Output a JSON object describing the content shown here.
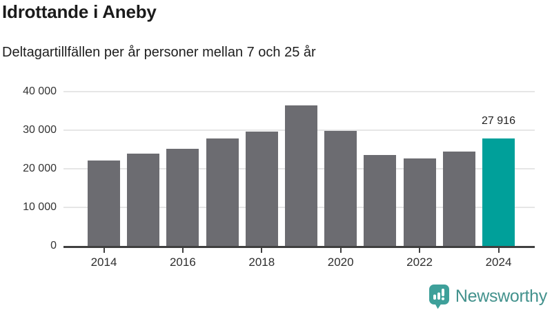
{
  "header": {
    "title": "Idrottande i Aneby",
    "subtitle": "Deltagartillfällen per år personer mellan 7 och 25 år"
  },
  "chart_data": {
    "type": "bar",
    "x": [
      2014,
      2015,
      2016,
      2017,
      2018,
      2019,
      2020,
      2021,
      2022,
      2023,
      2024
    ],
    "values": [
      22100,
      23900,
      25200,
      27800,
      29700,
      36500,
      29900,
      23500,
      22700,
      24400,
      27916
    ],
    "highlight_index": 10,
    "highlight_label": "27 916",
    "title": "Idrottande i Aneby",
    "subtitle": "Deltagartillfällen per år personer mellan 7 och 25 år",
    "xlabel": "",
    "ylabel": "",
    "ylim": [
      0,
      40000
    ],
    "grid": "horizontal",
    "legend": "none",
    "y_ticks": [
      {
        "value": 40000,
        "label": "40 000"
      },
      {
        "value": 30000,
        "label": "30 000"
      },
      {
        "value": 20000,
        "label": "20 000"
      },
      {
        "value": 10000,
        "label": "10 000"
      },
      {
        "value": 0,
        "label": "0"
      }
    ],
    "x_ticks": [
      {
        "year": 2014,
        "label": "2014"
      },
      {
        "year": 2016,
        "label": "2016"
      },
      {
        "year": 2018,
        "label": "2018"
      },
      {
        "year": 2020,
        "label": "2020"
      },
      {
        "year": 2022,
        "label": "2022"
      },
      {
        "year": 2024,
        "label": "2024"
      }
    ],
    "colors": {
      "bar": "#6c6c71",
      "highlight": "#00a09a",
      "grid": "#e6e6e6",
      "axis": "#3f3f3f",
      "tick_label": "#333333"
    }
  },
  "footer": {
    "brand": "Newsworthy",
    "brand_color": "#43928d",
    "icon": "newsworthy-bar-chart-speech-bubble",
    "icon_color": "#3ea09a"
  }
}
